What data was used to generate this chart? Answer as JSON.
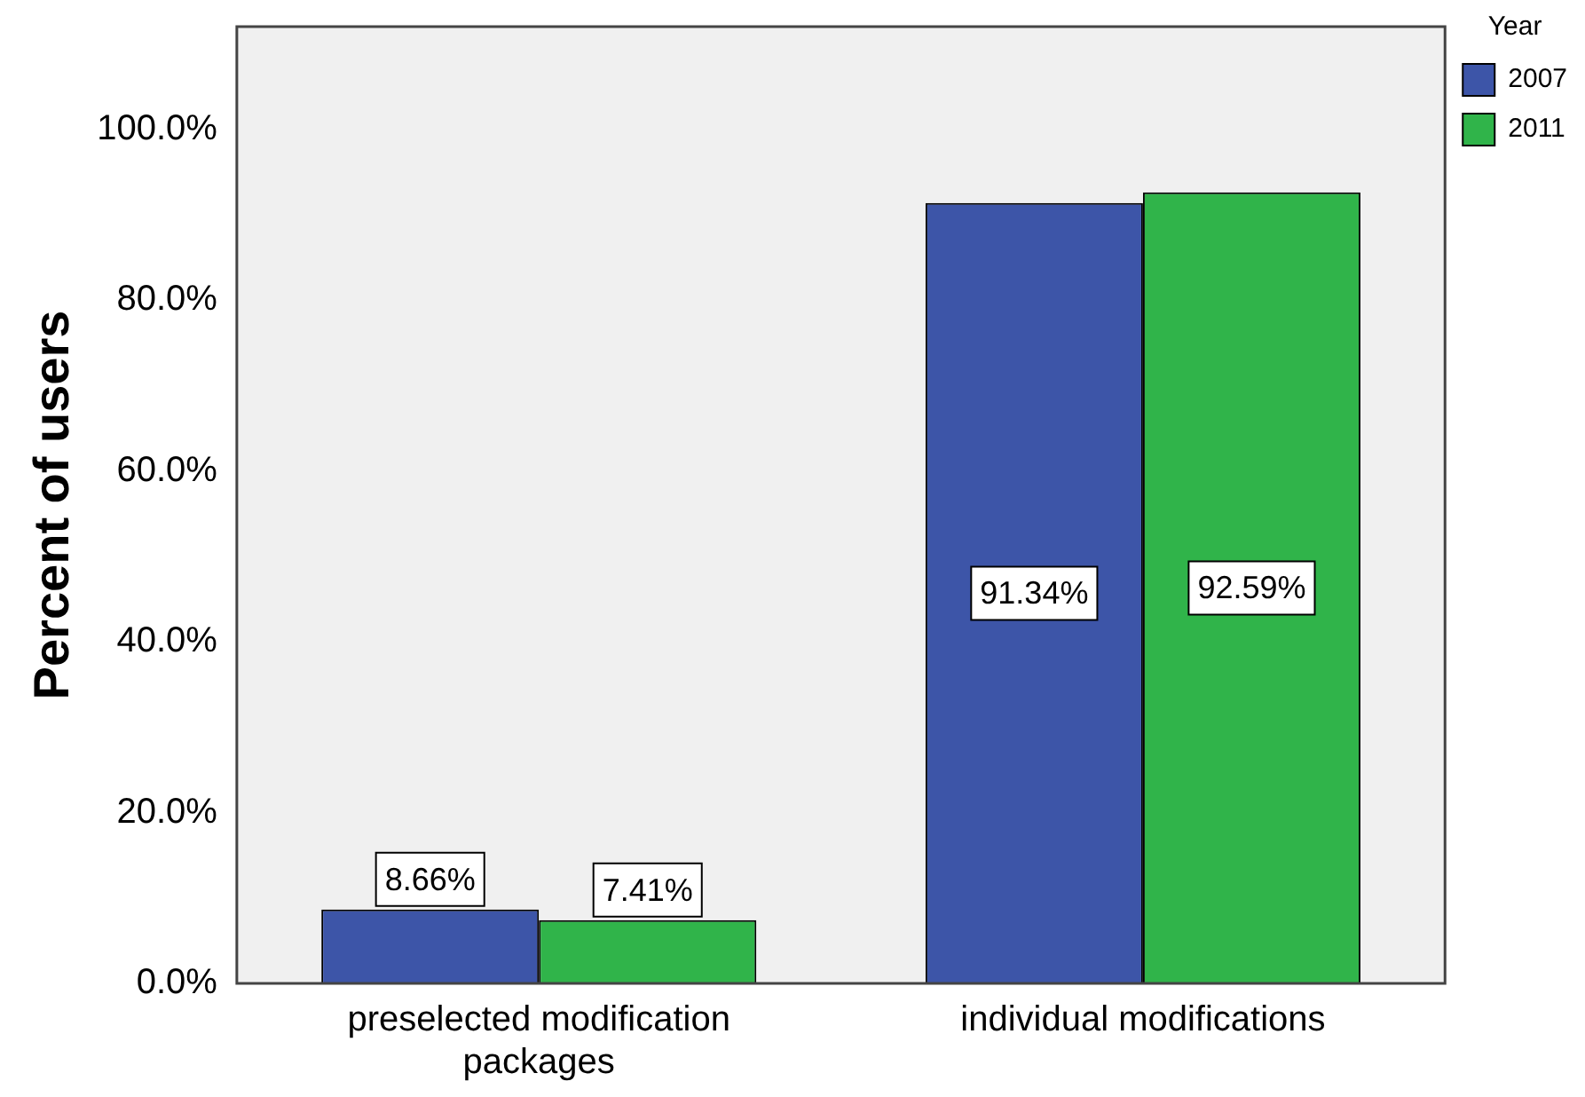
{
  "chart_data": {
    "type": "bar",
    "ylabel": "Percent of users",
    "legend_title": "Year",
    "categories": [
      "preselected modification packages",
      "individual modifications"
    ],
    "series": [
      {
        "name": "2007",
        "color": "#3d55a8",
        "values": [
          8.66,
          91.34
        ],
        "value_labels": [
          "8.66%",
          "91.34%"
        ]
      },
      {
        "name": "2011",
        "color": "#30b44a",
        "values": [
          7.41,
          92.59
        ],
        "value_labels": [
          "7.41%",
          "92.59%"
        ]
      }
    ],
    "ylim": [
      0,
      112
    ],
    "yticks": [
      {
        "value": 0,
        "label": "0.0%"
      },
      {
        "value": 20,
        "label": "20.0%"
      },
      {
        "value": 40,
        "label": "40.0%"
      },
      {
        "value": 60,
        "label": "60.0%"
      },
      {
        "value": 80,
        "label": "80.0%"
      },
      {
        "value": 100,
        "label": "100.0%"
      }
    ],
    "grid": false,
    "legend": "top right"
  }
}
